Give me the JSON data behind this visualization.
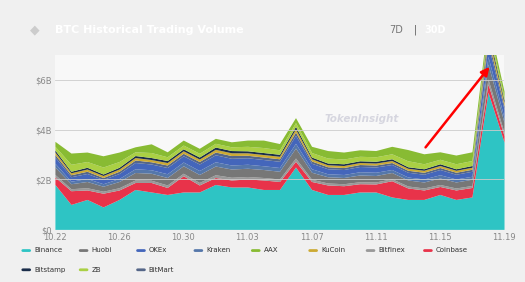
{
  "title": "BTC Historical Trading Volume",
  "header_bg": "#111111",
  "plot_bg": "#f5f5f5",
  "fig_bg": "#f0f0f0",
  "title_color": "#ffffff",
  "x_ticks": [
    "10.22",
    "10.26",
    "10.30",
    "11.03",
    "11.07",
    "11.11",
    "11.15",
    "11.19"
  ],
  "y_ticks": [
    "$0",
    "$2B",
    "$4B",
    "$6B"
  ],
  "series_order": [
    "Binance",
    "Coinbase",
    "Bitfinex",
    "Huobi",
    "Kraken",
    "OKEx",
    "BitMart",
    "KuCoin",
    "Bitstamp",
    "ZB",
    "AAX"
  ],
  "series": {
    "Binance": [
      1.8,
      1.0,
      1.2,
      0.9,
      1.2,
      1.6,
      1.5,
      1.4,
      1.5,
      1.5,
      1.8,
      1.7,
      1.7,
      1.6,
      1.6,
      2.5,
      1.6,
      1.4,
      1.4,
      1.5,
      1.5,
      1.3,
      1.2,
      1.2,
      1.4,
      1.2,
      1.3,
      5.5,
      3.5
    ],
    "Coinbase": [
      0.3,
      0.55,
      0.38,
      0.55,
      0.38,
      0.28,
      0.38,
      0.28,
      0.65,
      0.28,
      0.28,
      0.28,
      0.32,
      0.38,
      0.32,
      0.23,
      0.32,
      0.38,
      0.35,
      0.33,
      0.32,
      0.65,
      0.46,
      0.38,
      0.32,
      0.38,
      0.38,
      0.33,
      0.26
    ],
    "Bitfinex": [
      0.1,
      0.08,
      0.09,
      0.08,
      0.09,
      0.1,
      0.09,
      0.1,
      0.1,
      0.1,
      0.11,
      0.11,
      0.1,
      0.1,
      0.1,
      0.13,
      0.09,
      0.08,
      0.08,
      0.08,
      0.08,
      0.08,
      0.08,
      0.08,
      0.08,
      0.08,
      0.08,
      0.2,
      0.13
    ],
    "Huobi": [
      0.3,
      0.2,
      0.25,
      0.2,
      0.25,
      0.3,
      0.28,
      0.3,
      0.3,
      0.32,
      0.35,
      0.33,
      0.33,
      0.32,
      0.31,
      0.4,
      0.28,
      0.25,
      0.25,
      0.27,
      0.26,
      0.25,
      0.24,
      0.24,
      0.26,
      0.24,
      0.25,
      0.6,
      0.4
    ],
    "Kraken": [
      0.15,
      0.1,
      0.12,
      0.1,
      0.12,
      0.15,
      0.14,
      0.15,
      0.15,
      0.16,
      0.17,
      0.16,
      0.16,
      0.15,
      0.15,
      0.19,
      0.14,
      0.12,
      0.12,
      0.13,
      0.13,
      0.12,
      0.12,
      0.12,
      0.13,
      0.12,
      0.12,
      0.3,
      0.2
    ],
    "OKEx": [
      0.25,
      0.18,
      0.2,
      0.17,
      0.2,
      0.25,
      0.23,
      0.25,
      0.25,
      0.26,
      0.28,
      0.27,
      0.26,
      0.25,
      0.25,
      0.32,
      0.22,
      0.2,
      0.2,
      0.21,
      0.21,
      0.2,
      0.19,
      0.19,
      0.21,
      0.19,
      0.2,
      0.5,
      0.33
    ],
    "BitMart": [
      0.1,
      0.08,
      0.09,
      0.08,
      0.09,
      0.1,
      0.09,
      0.1,
      0.1,
      0.1,
      0.11,
      0.11,
      0.1,
      0.1,
      0.1,
      0.13,
      0.09,
      0.08,
      0.08,
      0.08,
      0.08,
      0.08,
      0.08,
      0.08,
      0.08,
      0.08,
      0.08,
      0.2,
      0.13
    ],
    "KuCoin": [
      0.1,
      0.08,
      0.09,
      0.08,
      0.09,
      0.1,
      0.09,
      0.1,
      0.1,
      0.1,
      0.11,
      0.11,
      0.1,
      0.1,
      0.1,
      0.13,
      0.09,
      0.08,
      0.08,
      0.08,
      0.08,
      0.08,
      0.08,
      0.08,
      0.08,
      0.08,
      0.08,
      0.2,
      0.13
    ],
    "Bitstamp": [
      0.08,
      0.06,
      0.07,
      0.06,
      0.07,
      0.08,
      0.08,
      0.08,
      0.08,
      0.08,
      0.09,
      0.09,
      0.08,
      0.08,
      0.08,
      0.1,
      0.07,
      0.07,
      0.07,
      0.07,
      0.07,
      0.07,
      0.06,
      0.06,
      0.07,
      0.06,
      0.07,
      0.16,
      0.1
    ],
    "ZB": [
      0.15,
      0.28,
      0.23,
      0.28,
      0.23,
      0.15,
      0.2,
      0.15,
      0.15,
      0.15,
      0.15,
      0.15,
      0.18,
      0.2,
      0.18,
      0.15,
      0.18,
      0.2,
      0.19,
      0.18,
      0.18,
      0.2,
      0.24,
      0.2,
      0.18,
      0.2,
      0.2,
      0.18,
      0.14
    ],
    "AAX": [
      0.2,
      0.45,
      0.38,
      0.45,
      0.38,
      0.2,
      0.35,
      0.2,
      0.2,
      0.2,
      0.2,
      0.2,
      0.25,
      0.3,
      0.25,
      0.2,
      0.25,
      0.3,
      0.28,
      0.26,
      0.25,
      0.3,
      0.45,
      0.4,
      0.3,
      0.35,
      0.35,
      0.28,
      0.22
    ]
  },
  "colors": {
    "Binance": "#2ec4c4",
    "Coinbase": "#e8334a",
    "Bitfinex": "#999999",
    "Huobi": "#777777",
    "Kraken": "#5577aa",
    "OKEx": "#4466bb",
    "BitMart": "#556688",
    "KuCoin": "#ccaa33",
    "Bitstamp": "#1a2d4a",
    "ZB": "#aad044",
    "AAX": "#88bb33"
  },
  "legend_order": [
    "Binance",
    "Huobi",
    "OKEx",
    "Kraken",
    "AAX",
    "KuCoin",
    "Bitfinex",
    "Coinbase",
    "Bitstamp",
    "ZB",
    "BitMart"
  ],
  "n_points": 29
}
